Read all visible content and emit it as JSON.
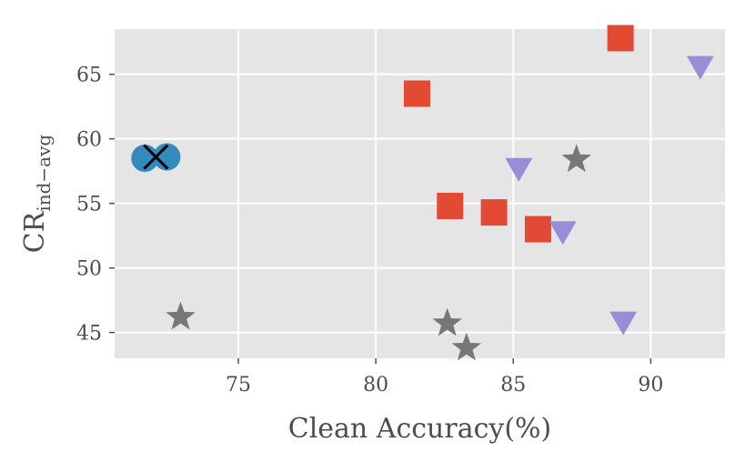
{
  "chart_data": {
    "type": "scatter",
    "title": "",
    "xlabel": "Clean Accuracy(%)",
    "ylabel": {
      "main": "CR",
      "subscript": "ind−avg"
    },
    "xlim": [
      70.5,
      92.7
    ],
    "ylim": [
      43.0,
      68.5
    ],
    "xticks": [
      75,
      80,
      85,
      90
    ],
    "yticks": [
      45,
      50,
      55,
      60,
      65
    ],
    "grid": true,
    "background": "#e5e5e5",
    "series": [
      {
        "marker": "circle",
        "color": "#348abd",
        "points": [
          {
            "x": 71.6,
            "y": 58.5
          },
          {
            "x": 72.4,
            "y": 58.6
          }
        ]
      },
      {
        "marker": "x",
        "color": "#000000",
        "points": [
          {
            "x": 72.0,
            "y": 58.6
          }
        ]
      },
      {
        "marker": "square",
        "color": "#e24a33",
        "points": [
          {
            "x": 81.5,
            "y": 63.5
          },
          {
            "x": 88.9,
            "y": 67.8
          },
          {
            "x": 82.7,
            "y": 54.8
          },
          {
            "x": 84.3,
            "y": 54.3
          },
          {
            "x": 85.9,
            "y": 53.0
          }
        ]
      },
      {
        "marker": "triangle-down",
        "color": "#988ed5",
        "points": [
          {
            "x": 91.8,
            "y": 65.5
          },
          {
            "x": 85.2,
            "y": 57.6
          },
          {
            "x": 86.8,
            "y": 52.7
          },
          {
            "x": 89.0,
            "y": 45.7
          }
        ]
      },
      {
        "marker": "star",
        "color": "#777777",
        "points": [
          {
            "x": 87.3,
            "y": 58.4
          },
          {
            "x": 72.9,
            "y": 46.2
          },
          {
            "x": 82.6,
            "y": 45.7
          },
          {
            "x": 83.3,
            "y": 43.8
          }
        ]
      }
    ]
  }
}
